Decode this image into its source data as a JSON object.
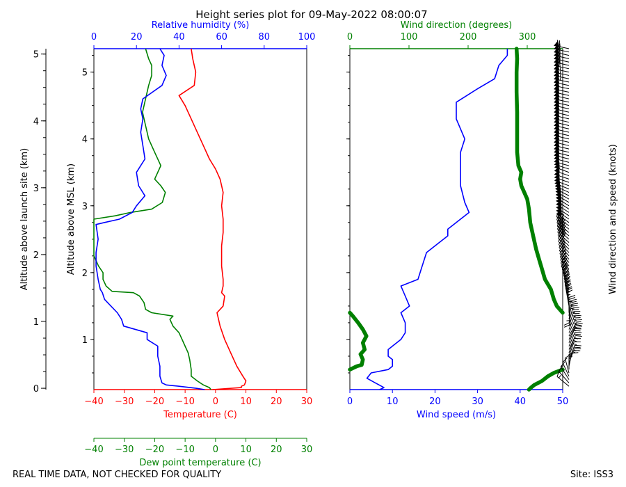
{
  "title": "Height series plot for 09-May-2022 08:00:07",
  "footer": {
    "left_note": "REAL TIME DATA, NOT CHECKED FOR QUALITY",
    "site": "Site: ISS3"
  },
  "colors": {
    "temperature": "#ff0000",
    "dewpoint": "#008000",
    "humidity": "#0000ff",
    "wind_speed": "#0000ff",
    "wind_direction": "#008000",
    "barbs": "#000000"
  },
  "chart_data": [
    {
      "type": "line",
      "name": "thermo-panel",
      "outer_ylabel": "Altitude above launch site (km)",
      "outer_yticks": [
        0,
        1,
        2,
        3,
        4,
        5
      ],
      "ylabel": "Altitude above MSL (km)",
      "yticks": [
        1,
        2,
        3,
        4,
        5
      ],
      "ylim_msl_km": [
        0.25,
        5.35
      ],
      "launch_site_elevation_km": 0.27,
      "axes": {
        "temperature": {
          "label": "Temperature (C)",
          "lim": [
            -40,
            30
          ],
          "ticks": [
            -40,
            -30,
            -20,
            -10,
            0,
            10,
            20,
            30
          ]
        },
        "dewpoint": {
          "label": "Dew point temperature (C)",
          "lim": [
            -40,
            30
          ],
          "ticks": [
            -40,
            -30,
            -20,
            -10,
            0,
            10,
            20,
            30
          ]
        },
        "humidity": {
          "label": "Relative humidity (%)",
          "lim": [
            0,
            100
          ],
          "ticks": [
            0,
            20,
            40,
            60,
            80,
            100
          ]
        }
      },
      "series": [
        {
          "name": "Temperature",
          "axis": "temperature",
          "color": "#ff0000",
          "points": [
            [
              -1.0,
              0.25
            ],
            [
              8.5,
              0.28
            ],
            [
              8.5,
              0.3
            ],
            [
              9.5,
              0.32
            ],
            [
              10.0,
              0.38
            ],
            [
              9.0,
              0.45
            ],
            [
              7.0,
              0.6
            ],
            [
              5.0,
              0.8
            ],
            [
              3.0,
              1.0
            ],
            [
              1.5,
              1.2
            ],
            [
              0.5,
              1.4
            ],
            [
              2.5,
              1.5
            ],
            [
              3.0,
              1.65
            ],
            [
              2.0,
              1.7
            ],
            [
              2.5,
              1.8
            ],
            [
              2.5,
              1.9
            ],
            [
              2.0,
              2.1
            ],
            [
              2.0,
              2.25
            ],
            [
              2.0,
              2.4
            ],
            [
              2.5,
              2.6
            ],
            [
              2.5,
              2.8
            ],
            [
              2.0,
              3.0
            ],
            [
              2.5,
              3.2
            ],
            [
              1.5,
              3.4
            ],
            [
              0.0,
              3.55
            ],
            [
              -2.0,
              3.7
            ],
            [
              -4.0,
              3.9
            ],
            [
              -6.0,
              4.1
            ],
            [
              -8.0,
              4.3
            ],
            [
              -10.0,
              4.5
            ],
            [
              -12.0,
              4.65
            ],
            [
              -7.0,
              4.8
            ],
            [
              -6.5,
              5.0
            ],
            [
              -7.5,
              5.2
            ],
            [
              -8.0,
              5.35
            ]
          ]
        },
        {
          "name": "Dew point",
          "axis": "dewpoint",
          "color": "#008000",
          "points": [
            [
              -1.5,
              0.25
            ],
            [
              -2.0,
              0.28
            ],
            [
              -4.0,
              0.32
            ],
            [
              -6.0,
              0.38
            ],
            [
              -8.0,
              0.45
            ],
            [
              -8.0,
              0.55
            ],
            [
              -8.5,
              0.7
            ],
            [
              -9.0,
              0.8
            ],
            [
              -10.0,
              0.9
            ],
            [
              -11.0,
              1.0
            ],
            [
              -12.0,
              1.1
            ],
            [
              -14.0,
              1.2
            ],
            [
              -15.0,
              1.3
            ],
            [
              -14.0,
              1.35
            ],
            [
              -21.0,
              1.4
            ],
            [
              -23.0,
              1.45
            ],
            [
              -23.5,
              1.55
            ],
            [
              -25.0,
              1.65
            ],
            [
              -27.0,
              1.7
            ],
            [
              -34.0,
              1.72
            ],
            [
              -36.0,
              1.8
            ],
            [
              -37.0,
              1.9
            ],
            [
              -37.0,
              2.0
            ],
            [
              -38.5,
              2.1
            ],
            [
              -40.0,
              2.25
            ],
            [
              -40.0,
              2.5
            ],
            [
              -40.0,
              2.8
            ],
            [
              -33.0,
              2.85
            ],
            [
              -28.0,
              2.9
            ],
            [
              -21.0,
              2.95
            ],
            [
              -17.5,
              3.05
            ],
            [
              -16.5,
              3.2
            ],
            [
              -18.0,
              3.3
            ],
            [
              -20.0,
              3.4
            ],
            [
              -18.0,
              3.6
            ],
            [
              -20.0,
              3.8
            ],
            [
              -22.0,
              4.0
            ],
            [
              -23.0,
              4.2
            ],
            [
              -24.0,
              4.4
            ],
            [
              -23.0,
              4.6
            ],
            [
              -22.0,
              4.8
            ],
            [
              -21.0,
              4.95
            ],
            [
              -21.0,
              5.1
            ],
            [
              -22.0,
              5.2
            ],
            [
              -23.0,
              5.35
            ]
          ]
        },
        {
          "name": "Relative humidity",
          "axis": "humidity",
          "color": "#0000ff",
          "points": [
            [
              52,
              0.25
            ],
            [
              48,
              0.27
            ],
            [
              40,
              0.3
            ],
            [
              34,
              0.32
            ],
            [
              32,
              0.35
            ],
            [
              31,
              0.45
            ],
            [
              31,
              0.6
            ],
            [
              30,
              0.75
            ],
            [
              30,
              0.9
            ],
            [
              25,
              1.0
            ],
            [
              25,
              1.1
            ],
            [
              14,
              1.2
            ],
            [
              13,
              1.3
            ],
            [
              11,
              1.4
            ],
            [
              8,
              1.5
            ],
            [
              5,
              1.6
            ],
            [
              4,
              1.7
            ],
            [
              3,
              1.75
            ],
            [
              2,
              1.9
            ],
            [
              1,
              2.1
            ],
            [
              1,
              2.3
            ],
            [
              2,
              2.5
            ],
            [
              1,
              2.72
            ],
            [
              5,
              2.75
            ],
            [
              12,
              2.8
            ],
            [
              18,
              2.9
            ],
            [
              20,
              3.0
            ],
            [
              24,
              3.15
            ],
            [
              21,
              3.3
            ],
            [
              20,
              3.5
            ],
            [
              22,
              3.6
            ],
            [
              24,
              3.7
            ],
            [
              23,
              3.9
            ],
            [
              22,
              4.1
            ],
            [
              23,
              4.3
            ],
            [
              22,
              4.45
            ],
            [
              23,
              4.6
            ],
            [
              32,
              4.8
            ],
            [
              34,
              4.95
            ],
            [
              32,
              5.1
            ],
            [
              33,
              5.25
            ],
            [
              31,
              5.35
            ]
          ]
        }
      ]
    },
    {
      "type": "line",
      "name": "wind-panel",
      "ylim_msl_km": [
        0.25,
        5.35
      ],
      "axes": {
        "wind_speed": {
          "label": "Wind speed (m/s)",
          "lim": [
            0,
            50
          ],
          "ticks": [
            0,
            10,
            20,
            30,
            40,
            50
          ]
        },
        "wind_direction": {
          "label": "Wind direction (degrees)",
          "lim": [
            0,
            360
          ],
          "ticks": [
            0,
            100,
            200,
            300
          ]
        }
      },
      "series": [
        {
          "name": "Wind speed",
          "axis": "wind_speed",
          "color": "#0000ff",
          "points": [
            [
              7,
              0.25
            ],
            [
              8,
              0.28
            ],
            [
              6,
              0.35
            ],
            [
              4,
              0.42
            ],
            [
              5,
              0.5
            ],
            [
              9,
              0.55
            ],
            [
              10,
              0.6
            ],
            [
              10,
              0.7
            ],
            [
              9,
              0.75
            ],
            [
              9,
              0.85
            ],
            [
              12,
              1.0
            ],
            [
              13,
              1.1
            ],
            [
              13,
              1.25
            ],
            [
              12,
              1.4
            ],
            [
              14,
              1.5
            ],
            [
              13,
              1.65
            ],
            [
              12,
              1.8
            ],
            [
              16,
              1.9
            ],
            [
              17,
              2.1
            ],
            [
              18,
              2.3
            ],
            [
              21,
              2.45
            ],
            [
              23,
              2.55
            ],
            [
              23,
              2.65
            ],
            [
              26,
              2.8
            ],
            [
              28,
              2.9
            ],
            [
              27,
              3.05
            ],
            [
              26,
              3.3
            ],
            [
              26,
              3.5
            ],
            [
              26,
              3.8
            ],
            [
              27,
              4.0
            ],
            [
              25,
              4.3
            ],
            [
              25,
              4.55
            ],
            [
              30,
              4.75
            ],
            [
              34,
              4.9
            ],
            [
              35,
              5.1
            ],
            [
              37,
              5.25
            ],
            [
              37,
              5.35
            ]
          ]
        },
        {
          "name": "Wind direction",
          "axis": "wind_direction",
          "color": "#008000",
          "thick": true,
          "segments": [
            [
              [
                360,
                0.55
              ],
              [
                345,
                0.5
              ],
              [
                335,
                0.45
              ],
              [
                325,
                0.38
              ],
              [
                312,
                0.32
              ],
              [
                305,
                0.27
              ],
              [
                303,
                0.25
              ]
            ],
            [
              [
                0,
                0.55
              ],
              [
                12,
                0.6
              ],
              [
                20,
                0.62
              ],
              [
                22,
                0.7
              ],
              [
                18,
                0.78
              ],
              [
                25,
                0.85
              ],
              [
                22,
                0.95
              ],
              [
                28,
                1.05
              ],
              [
                22,
                1.15
              ],
              [
                14,
                1.25
              ],
              [
                5,
                1.35
              ],
              [
                0,
                1.4
              ]
            ],
            [
              [
                360,
                1.4
              ],
              [
                350,
                1.5
              ],
              [
                345,
                1.6
              ],
              [
                340,
                1.75
              ],
              [
                330,
                1.9
              ],
              [
                325,
                2.05
              ],
              [
                320,
                2.2
              ],
              [
                315,
                2.35
              ],
              [
                310,
                2.55
              ],
              [
                305,
                2.75
              ],
              [
                303,
                2.95
              ],
              [
                300,
                3.1
              ],
              [
                295,
                3.2
              ],
              [
                290,
                3.3
              ],
              [
                288,
                3.4
              ],
              [
                290,
                3.5
              ],
              [
                285,
                3.6
              ],
              [
                283,
                3.8
              ],
              [
                283,
                4.1
              ],
              [
                283,
                4.4
              ],
              [
                282,
                4.7
              ],
              [
                282,
                5.0
              ],
              [
                283,
                5.2
              ],
              [
                282,
                5.35
              ]
            ]
          ]
        }
      ]
    },
    {
      "type": "barbs",
      "name": "wind-barbs",
      "label": "Wind direction and speed (knots)",
      "note": "Barbs drawn from the wind speed and wind direction profiles of the wind panel"
    }
  ]
}
